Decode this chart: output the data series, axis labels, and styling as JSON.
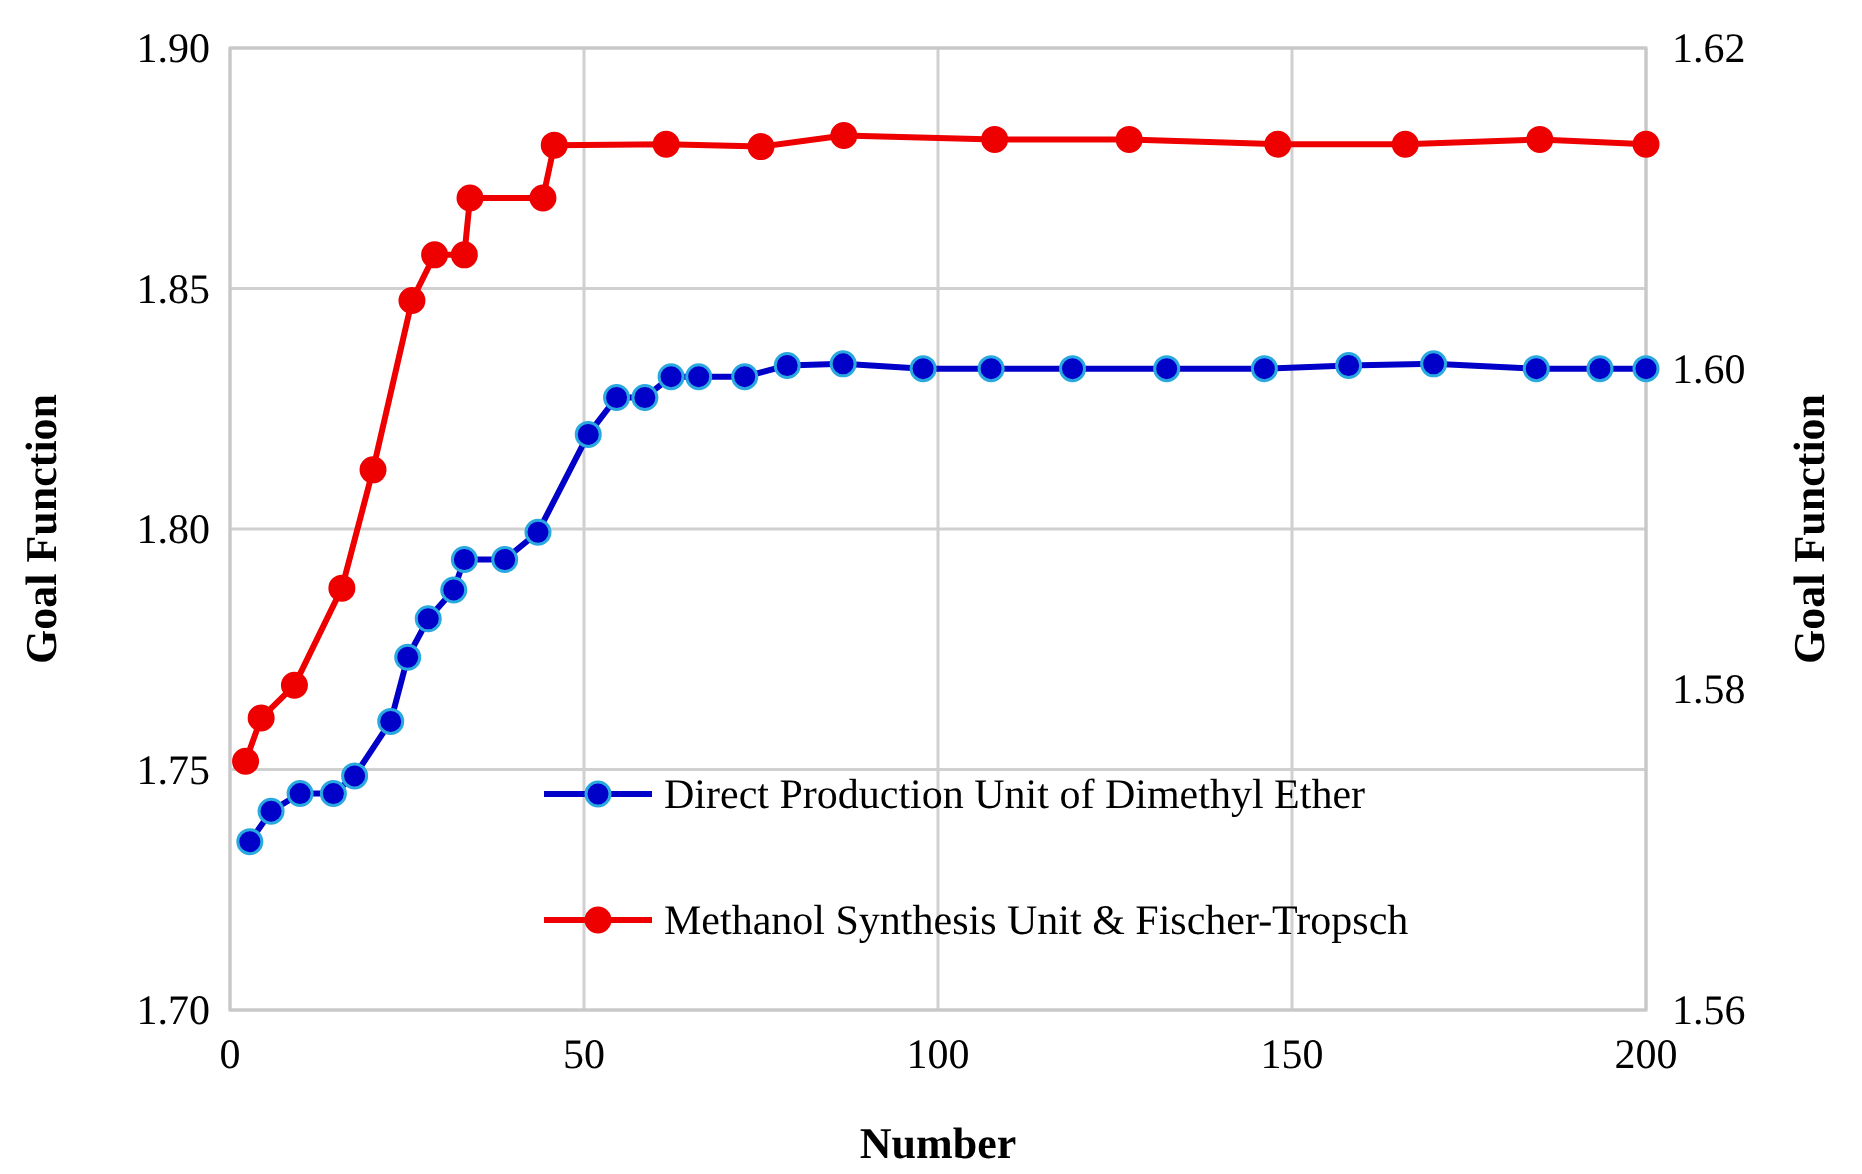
{
  "chart_data": {
    "type": "line",
    "xlabel": "Number",
    "ylabel": "Goal Function",
    "y2label": "Goal Function",
    "xlim": [
      0,
      200
    ],
    "xticks": [
      0,
      50,
      100,
      150,
      200
    ],
    "ylim": [
      1.7,
      1.9
    ],
    "yticks": [
      {
        "value": 1.7,
        "label": "1.70"
      },
      {
        "value": 1.75,
        "label": "1.75"
      },
      {
        "value": 1.8,
        "label": "1.80"
      },
      {
        "value": 1.85,
        "label": "1.85"
      },
      {
        "value": 1.9,
        "label": "1.90"
      }
    ],
    "y2lim": [
      1.56,
      1.62
    ],
    "y2ticks": [
      {
        "value": 1.56,
        "label": "1.56"
      },
      {
        "value": 1.58,
        "label": "1.58"
      },
      {
        "value": 1.6,
        "label": "1.60"
      },
      {
        "value": 1.62,
        "label": "1.62"
      }
    ],
    "grid": true,
    "legend": "bottom right",
    "marker": "circle",
    "line_style": "solid",
    "series": [
      {
        "name": "Direct Production Unit of Dimethyl Ether",
        "color": "#0000c8",
        "axis": "y2",
        "x": [
          2.8,
          5.8,
          9.9,
          14.6,
          17.6,
          22.7,
          25.1,
          28.0,
          31.6,
          33.1,
          38.8,
          43.5,
          50.6,
          54.6,
          58.6,
          62.3,
          66.2,
          72.7,
          78.7,
          86.6,
          97.9,
          107.5,
          119.0,
          132.3,
          146.1,
          158.0,
          170.0,
          184.5,
          193.5,
          200
        ],
        "values": [
          1.5705,
          1.5724,
          1.5735,
          1.5735,
          1.5746,
          1.578,
          1.582,
          1.5844,
          1.5862,
          1.5881,
          1.5881,
          1.5898,
          1.5959,
          1.5982,
          1.5982,
          1.5995,
          1.5995,
          1.5995,
          1.6002,
          1.6003,
          1.6,
          1.6,
          1.6,
          1.6,
          1.6,
          1.6002,
          1.6003,
          1.6,
          1.6,
          1.6
        ]
      },
      {
        "name": "Methanol Synthesis Unit & Fischer-Tropsch",
        "color": "#ee0000",
        "axis": "y",
        "x": [
          2.2,
          4.4,
          9.1,
          15.8,
          20.2,
          25.7,
          28.9,
          33.1,
          33.9,
          44.2,
          45.8,
          61.6,
          75.0,
          86.7,
          108,
          127,
          148,
          166,
          185,
          200
        ],
        "values": [
          1.7517,
          1.7607,
          1.7675,
          1.7877,
          1.8123,
          1.8475,
          1.857,
          1.857,
          1.8688,
          1.8688,
          1.8798,
          1.88,
          1.8795,
          1.8818,
          1.881,
          1.881,
          1.88,
          1.88,
          1.881,
          1.88
        ]
      }
    ]
  }
}
